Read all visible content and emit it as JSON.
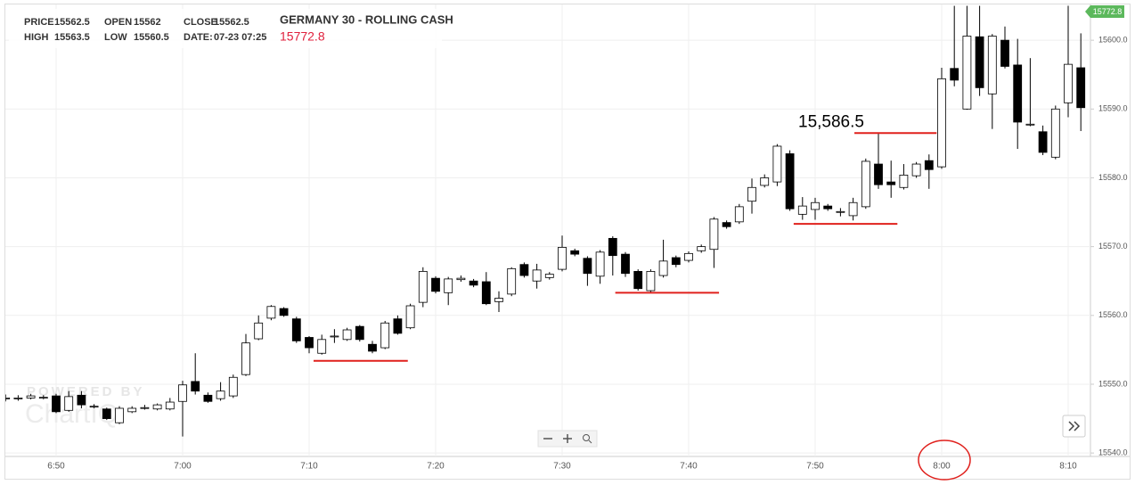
{
  "chart_data": {
    "type": "candlestick",
    "title": "GERMANY 30 - ROLLING CASH",
    "last_price": "15772.8",
    "header": [
      {
        "label": "PRICE",
        "value": 15562.5
      },
      {
        "label": "OPEN",
        "value": 15562
      },
      {
        "label": "CLOSE",
        "value": 15562.5
      },
      {
        "label": "HIGH",
        "value": 15563.5
      },
      {
        "label": "LOW",
        "value": 15560.5
      },
      {
        "label": "DATE:",
        "value": "07-23 07:25"
      }
    ],
    "watermark": [
      "POWERED BY",
      "ChartIQ"
    ],
    "up_color": "#ffffff",
    "down_color": "#000000",
    "outline_color": "#000000",
    "level_color": "#e0201c",
    "grid": true,
    "categories": [
      null,
      null,
      null,
      null,
      "6:50",
      null,
      null,
      null,
      null,
      null,
      null,
      null,
      null,
      null,
      "7:00",
      null,
      null,
      null,
      null,
      null,
      null,
      null,
      null,
      null,
      "7:10",
      null,
      null,
      null,
      null,
      null,
      null,
      null,
      null,
      null,
      "7:20",
      null,
      null,
      null,
      null,
      null,
      null,
      null,
      null,
      null,
      "7:30",
      null,
      null,
      null,
      null,
      null,
      null,
      null,
      null,
      null,
      "7:40",
      null,
      null,
      null,
      null,
      null,
      null,
      null,
      null,
      null,
      "7:50",
      null,
      null,
      null,
      null,
      null,
      null,
      null,
      null,
      null,
      "8:00",
      null,
      null,
      null,
      null,
      null,
      null,
      null,
      null,
      null,
      "8:10",
      null
    ],
    "open": [
      15548,
      15548,
      15548,
      15548.1,
      15548.3,
      15546.2,
      15548.4,
      15546.8,
      15546.4,
      15544.4,
      15546,
      15546.6,
      15546.4,
      15546.4,
      15547.5,
      15550.4,
      15548.4,
      15547.9,
      15548.3,
      15551.4,
      15556.6,
      15559.6,
      15561,
      15559.5,
      15556.8,
      15554.5,
      15557,
      15556.5,
      15558.4,
      15555.8,
      15555.3,
      15559.5,
      15558.2,
      15561.9,
      15565.4,
      15563.3,
      15565.2,
      15565,
      15564.9,
      15562,
      15563.1,
      15567.4,
      15565,
      15565.5,
      15566.7,
      15569.4,
      15568.3,
      15565.7,
      15571.2,
      15568.9,
      15566.4,
      15563.6,
      15565.8,
      15568.4,
      15568,
      15569.4,
      15569.6,
      15573.5,
      15573.6,
      15576.6,
      15578.9,
      15579.4,
      15583.5,
      15574.7,
      15575.4,
      15575.9,
      15575.1,
      15574.5,
      15575.8,
      15582,
      15579.4,
      15578.6,
      15580.3,
      15582.5,
      15581.6,
      15595.9,
      15590,
      15600.5,
      15592.2,
      15600,
      15596.4,
      15587.8,
      15586.7,
      15583,
      15590.9,
      15596
    ],
    "high": [
      15548.5,
      15548.4,
      15548.6,
      15548.4,
      15548.6,
      15549,
      15549,
      15547.1,
      15546.6,
      15546.8,
      15546.8,
      15547,
      15547.2,
      15548,
      15550.5,
      15554.5,
      15548.8,
      15550.3,
      15551.4,
      15557.3,
      15560,
      15561.5,
      15561.2,
      15559.8,
      15557,
      15557.2,
      15558,
      15558.2,
      15558.6,
      15556.3,
      15559.2,
      15560,
      15561.7,
      15567,
      15565.7,
      15565.6,
      15565.8,
      15565.3,
      15566.3,
      15563.5,
      15567,
      15567.7,
      15567.5,
      15566.3,
      15571.6,
      15569.7,
      15568.6,
      15569.5,
      15571.5,
      15569.2,
      15566.7,
      15566.7,
      15571,
      15568.7,
      15569.3,
      15570.3,
      15574.3,
      15573.8,
      15576.2,
      15579.9,
      15580.5,
      15584.9,
      15584,
      15577.2,
      15577.1,
      15576.2,
      15575.6,
      15577.1,
      15582.8,
      15586.5,
      15582.5,
      15582,
      15582.3,
      15583.4,
      15596,
      15605,
      15605,
      15605,
      15600.9,
      15602,
      15600.2,
      15597.4,
      15587.6,
      15590.5,
      15605,
      15601
    ],
    "low": [
      15547.5,
      15547.6,
      15547.8,
      15547.8,
      15545.8,
      15546,
      15546.5,
      15546.5,
      15544.8,
      15544.2,
      15545.8,
      15546.3,
      15546.2,
      15546.2,
      15542.4,
      15548.5,
      15547.3,
      15547.6,
      15548,
      15551.2,
      15556.4,
      15559.3,
      15559.8,
      15556,
      15554.5,
      15554.3,
      15556,
      15556.3,
      15556.2,
      15554.5,
      15555.1,
      15557.2,
      15558,
      15561.2,
      15563.2,
      15561.5,
      15564.9,
      15564.1,
      15561.5,
      15560.5,
      15562.8,
      15565.5,
      15563.9,
      15565.2,
      15566.4,
      15568.6,
      15564.3,
      15564.6,
      15565.8,
      15565.6,
      15563.6,
      15563.3,
      15565.5,
      15567,
      15567.7,
      15569.1,
      15566.9,
      15572.6,
      15573.3,
      15574.8,
      15578.6,
      15578.8,
      15575.2,
      15573.9,
      15573.9,
      15575.2,
      15574.4,
      15573.8,
      15575.5,
      15578.4,
      15577.1,
      15578.3,
      15580,
      15578.4,
      15581.3,
      15593.3,
      15589.9,
      15591.9,
      15587.1,
      15595.9,
      15584.2,
      15587.5,
      15583.3,
      15582.7,
      15588.8,
      15586.8
    ],
    "close": [
      15548,
      15548,
      15548.3,
      15548.1,
      15546,
      15548.2,
      15547,
      15546.8,
      15545,
      15546.5,
      15546.5,
      15546.6,
      15547,
      15547.4,
      15549.9,
      15549,
      15547.5,
      15549,
      15551,
      15556,
      15558.9,
      15561.3,
      15560,
      15556.3,
      15555.3,
      15556.5,
      15557,
      15557.9,
      15556.5,
      15554.8,
      15558.9,
      15557.4,
      15561.4,
      15566.4,
      15563.5,
      15565.3,
      15565.4,
      15564.4,
      15561.7,
      15562.5,
      15566.8,
      15565.8,
      15566.6,
      15566,
      15569.9,
      15568.9,
      15566.1,
      15569.2,
      15568.7,
      15566.1,
      15563.9,
      15566.4,
      15567.9,
      15567.4,
      15569,
      15570,
      15574,
      15572.9,
      15575.8,
      15578.6,
      15580,
      15584.6,
      15575.5,
      15575.9,
      15576.4,
      15575.5,
      15575.1,
      15576.4,
      15582.4,
      15579,
      15579,
      15580.4,
      15582,
      15581.2,
      15594.4,
      15594.2,
      15600.6,
      15593.1,
      15600.6,
      15596.2,
      15588.1,
      15587.8,
      15583.7,
      15590,
      15596.5,
      15590.2
    ],
    "levels": [
      {
        "value": 15553.4
      },
      {
        "value": 15563.3
      },
      {
        "value": 15573.3
      },
      {
        "value": 15586.5,
        "label": "15,586.5"
      }
    ],
    "ylim": [
      15539.5,
      15605.2
    ],
    "yticks": [
      {
        "value": 15540,
        "label": "15540.0"
      },
      {
        "value": 15550,
        "label": "15550.0"
      },
      {
        "value": 15560,
        "label": "15560.0"
      },
      {
        "value": 15570,
        "label": "15570.0"
      },
      {
        "value": 15580,
        "label": "15580.0"
      },
      {
        "value": 15590,
        "label": "15590.0"
      },
      {
        "value": 15600,
        "label": "15600.0"
      }
    ]
  }
}
